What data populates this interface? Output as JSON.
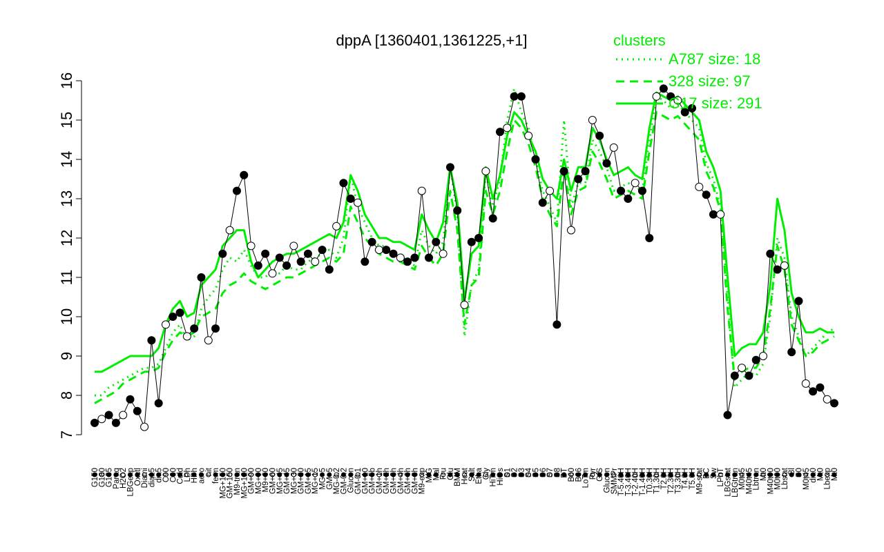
{
  "chart_data": {
    "type": "line",
    "title": "dppA [1360401,1361225,+1]",
    "ylim": [
      7,
      16
    ],
    "yticks": [
      7,
      8,
      9,
      10,
      11,
      12,
      13,
      14,
      15,
      16
    ],
    "x_tick_labels": [
      "G150",
      "G180",
      "G135",
      "Paraq",
      "H2O2",
      "LBGexp",
      "Oxctl",
      "Diami",
      "dia15",
      "dia5",
      "C90",
      "C30",
      "Cold",
      "LPh",
      "HPh",
      "aero",
      "nit",
      "ferm",
      "MG+150",
      "GM+150",
      "M9-tran",
      "MG+120",
      "GM+90",
      "MG+90",
      "M9+60",
      "GM+60",
      "MG+45",
      "GM+45",
      "MG+30",
      "GM+30",
      "GM+15",
      "MG+15",
      "MG+5",
      "GM+5",
      "MG-0.2",
      "GM-0.2",
      "Glucon",
      "GM-0.1",
      "GM+10",
      "GM+5b",
      "GM+1h",
      "GM+2h",
      "GM+3h",
      "GM+4h",
      "GM+6h",
      "GM+8h",
      "M9-exp",
      "M/G",
      "Mal",
      "Fru",
      "Glu",
      "BMM",
      "Heat",
      "Salt",
      "Etha",
      "Gly",
      "HiTm",
      "HiOs",
      "S1",
      "S2",
      "S3",
      "S4",
      "S5",
      "S6",
      "S7",
      "S8",
      "BT",
      "B60",
      "B36",
      "LoTm",
      "Pyr",
      "G/S",
      "Glucon",
      "SMMPr",
      "T-5.40H",
      "T-3.40H",
      "T-2.40H",
      "T-1.40H",
      "T0.30H",
      "T1.30H",
      "T2.0H",
      "T2.30H",
      "T3.30H",
      "T4.0H",
      "T5.0H",
      "M9-stat",
      "BC",
      "Sw",
      "LPhT",
      "LBGstat",
      "LBGtran",
      "M0t45",
      "M40t45",
      "Lbtran",
      "Mt0",
      "M40t90",
      "M0t90",
      "Lbstat",
      "Bl",
      "S0",
      "M0t45",
      "dia0",
      "Mt0",
      "Lbexp",
      "Mt0"
    ],
    "series": [
      {
        "style": "dotted",
        "color": "#00ee00",
        "values": [
          8.0,
          8.0,
          8.2,
          8.3,
          8.4,
          8.5,
          8.6,
          8.7,
          8.7,
          8.8,
          9.2,
          9.6,
          9.8,
          9.4,
          9.5,
          10.2,
          10.5,
          10.7,
          11.2,
          11.5,
          11.4,
          11.7,
          11.3,
          11.0,
          11.0,
          11.2,
          11.1,
          11.3,
          11.2,
          11.2,
          11.4,
          11.5,
          11.6,
          11.7,
          11.5,
          12.0,
          13.6,
          12.8,
          12.4,
          12.0,
          11.8,
          11.8,
          11.6,
          11.6,
          11.4,
          11.3,
          12.2,
          11.8,
          11.6,
          11.9,
          13.8,
          12.6,
          9.5,
          10.8,
          11.2,
          13.7,
          12.8,
          13.5,
          15.0,
          15.8,
          15.2,
          14.8,
          14.0,
          13.2,
          12.8,
          12.4,
          15.0,
          12.8,
          13.4,
          13.4,
          14.5,
          14.2,
          13.8,
          13.2,
          13.3,
          13.4,
          13.3,
          13.2,
          14.5,
          15.6,
          15.5,
          15.3,
          15.4,
          15.2,
          15.0,
          14.8,
          13.9,
          13.5,
          12.8,
          10.5,
          8.2,
          8.4,
          8.6,
          8.5,
          8.8,
          10.0,
          12.0,
          11.5,
          10.0,
          9.5,
          9.0,
          9.2,
          9.4,
          9.6,
          9.7
        ]
      },
      {
        "style": "dashed",
        "color": "#00ee00",
        "values": [
          7.8,
          7.9,
          8.0,
          8.1,
          8.3,
          8.4,
          8.5,
          8.6,
          8.6,
          8.7,
          9.1,
          9.4,
          9.6,
          9.5,
          9.6,
          10.0,
          10.1,
          10.2,
          10.6,
          10.8,
          10.9,
          11.1,
          10.9,
          10.8,
          10.7,
          10.8,
          10.9,
          11.0,
          11.0,
          11.1,
          11.2,
          11.3,
          11.4,
          11.5,
          11.4,
          11.6,
          12.8,
          12.4,
          12.0,
          11.8,
          11.6,
          11.5,
          11.4,
          11.4,
          11.3,
          11.2,
          11.8,
          11.5,
          11.3,
          11.6,
          13.2,
          12.2,
          9.8,
          10.8,
          11.0,
          13.2,
          12.6,
          13.2,
          14.2,
          15.0,
          14.8,
          14.4,
          13.8,
          13.0,
          12.6,
          12.3,
          13.8,
          12.6,
          13.2,
          13.3,
          14.2,
          13.9,
          13.5,
          13.0,
          13.1,
          13.2,
          13.1,
          13.0,
          14.2,
          15.2,
          15.1,
          15.0,
          15.1,
          14.9,
          14.7,
          14.5,
          13.7,
          13.3,
          12.7,
          10.2,
          8.4,
          8.6,
          8.7,
          8.7,
          9.0,
          10.2,
          11.8,
          11.2,
          9.8,
          9.4,
          9.0,
          9.1,
          9.3,
          9.4,
          9.5
        ]
      },
      {
        "style": "solid",
        "color": "#00ee00",
        "values": [
          8.6,
          8.6,
          8.7,
          8.8,
          8.9,
          9.0,
          9.0,
          9.0,
          9.0,
          9.2,
          9.8,
          10.2,
          10.4,
          10.0,
          10.1,
          10.8,
          11.0,
          11.2,
          11.8,
          12.0,
          12.2,
          12.2,
          11.4,
          11.0,
          11.2,
          11.4,
          11.5,
          11.6,
          11.6,
          11.7,
          11.8,
          11.9,
          12.0,
          12.1,
          12.0,
          12.4,
          13.6,
          13.2,
          12.6,
          12.3,
          12.0,
          12.0,
          11.9,
          11.9,
          11.8,
          11.7,
          12.6,
          12.2,
          11.9,
          12.4,
          13.8,
          12.9,
          10.4,
          11.6,
          11.8,
          13.8,
          13.0,
          13.6,
          14.6,
          15.2,
          15.0,
          14.6,
          14.2,
          13.5,
          13.2,
          13.0,
          14.0,
          13.2,
          13.8,
          13.8,
          14.8,
          14.5,
          14.0,
          13.6,
          13.7,
          13.8,
          13.6,
          13.5,
          14.8,
          15.7,
          15.6,
          15.5,
          15.6,
          15.4,
          15.2,
          15.0,
          14.2,
          13.8,
          13.2,
          11.0,
          9.0,
          9.2,
          9.3,
          9.3,
          9.6,
          10.8,
          13.0,
          12.2,
          10.6,
          10.0,
          9.6,
          9.6,
          9.7,
          9.6,
          9.6
        ]
      },
      {
        "style": "points",
        "color": "#000000",
        "values": [
          7.3,
          7.4,
          7.5,
          7.3,
          7.5,
          7.9,
          7.6,
          7.2,
          9.4,
          7.8,
          9.8,
          10.0,
          10.1,
          9.5,
          9.7,
          11.0,
          9.4,
          9.7,
          11.6,
          12.2,
          13.2,
          13.6,
          11.8,
          11.3,
          11.6,
          11.1,
          11.5,
          11.3,
          11.8,
          11.4,
          11.6,
          11.4,
          11.7,
          11.2,
          12.3,
          13.4,
          13.0,
          12.9,
          11.4,
          11.9,
          11.7,
          11.7,
          11.6,
          11.5,
          11.4,
          11.5,
          13.2,
          11.5,
          11.9,
          11.6,
          13.8,
          12.7,
          10.3,
          11.9,
          12.0,
          13.7,
          12.5,
          14.7,
          14.8,
          15.6,
          15.6,
          14.6,
          14.0,
          12.9,
          13.2,
          9.8,
          13.7,
          12.2,
          13.5,
          13.7,
          15.0,
          14.6,
          13.9,
          14.3,
          13.2,
          13.0,
          13.4,
          13.2,
          12.0,
          15.6,
          15.8,
          15.6,
          15.5,
          15.2,
          15.3,
          13.3,
          13.1,
          12.6,
          12.6,
          7.5,
          8.5,
          8.7,
          8.5,
          8.9,
          9.0,
          11.6,
          11.2,
          11.3,
          9.1,
          10.4,
          8.3,
          8.1,
          8.2,
          7.9,
          7.8
        ]
      }
    ],
    "legend": {
      "title": "clusters",
      "position": "top-right",
      "entries": [
        {
          "label": "A787 size: 18",
          "style": "dotted"
        },
        {
          "label": "328 size: 97",
          "style": "dashed"
        },
        {
          "label": "G17 size: 291",
          "style": "solid"
        }
      ]
    },
    "grid": false
  }
}
